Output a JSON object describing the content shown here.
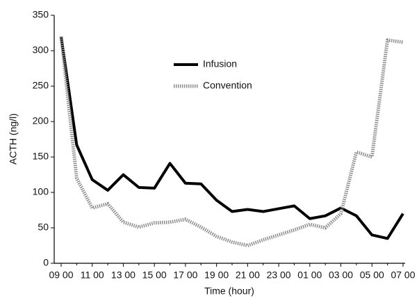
{
  "chart_data": {
    "type": "line",
    "y_label": "ACTH (ng/l)",
    "x_label": "Time (hour)",
    "categories": [
      "09 00",
      null,
      "11 00",
      null,
      "13 00",
      null,
      "15 00",
      null,
      "17 00",
      null,
      "19 00",
      null,
      "21 00",
      null,
      "23 00",
      null,
      "01 00",
      null,
      "03 00",
      null,
      "05 00",
      null,
      "07 00"
    ],
    "series": [
      {
        "name": "Infusion",
        "color": "#000000",
        "dashed": false,
        "values": [
          320,
          167,
          118,
          103,
          125,
          107,
          106,
          141,
          113,
          112,
          89,
          73,
          76,
          73,
          77,
          81,
          63,
          67,
          78,
          67,
          40,
          35,
          70
        ]
      },
      {
        "name": "Convention",
        "color": "#8c8c8c",
        "dashed": true,
        "values": [
          320,
          120,
          78,
          84,
          58,
          51,
          57,
          58,
          62,
          51,
          38,
          30,
          25,
          33,
          40,
          47,
          55,
          50,
          70,
          157,
          150,
          315,
          312
        ]
      }
    ],
    "ylim": [
      0,
      350
    ],
    "yticks": [
      0,
      50,
      100,
      150,
      200,
      250,
      300,
      350
    ]
  }
}
